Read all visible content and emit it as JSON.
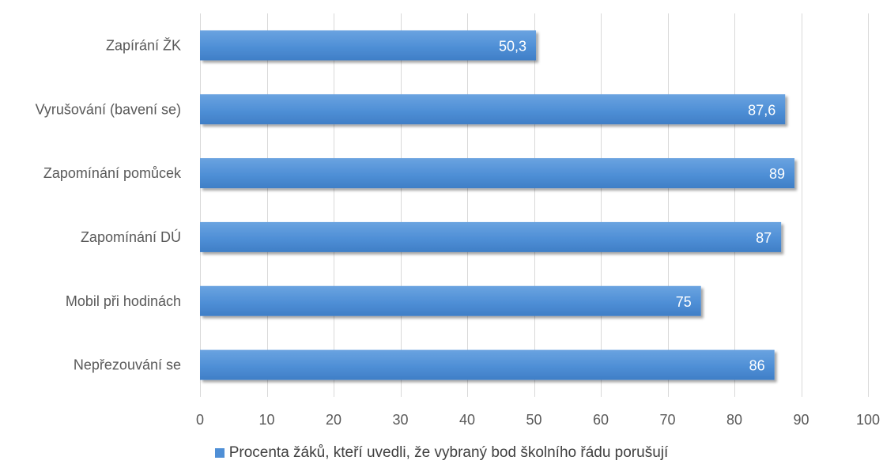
{
  "chart_data": {
    "type": "bar",
    "orientation": "horizontal",
    "categories": [
      "Zapírání ŽK",
      "Vyrušování (bavení se)",
      "Zapomínání pomůcek",
      "Zapomínání DÚ",
      "Mobil při hodinách",
      "Nepřezouvání se"
    ],
    "series": [
      {
        "name": "Procenta žáků, kteří uvedli, že vybraný bod školního řádu porušují",
        "values": [
          50.3,
          87.6,
          89,
          87,
          75,
          86
        ],
        "labels": [
          "50,3",
          "87,6",
          "89",
          "87",
          "75",
          "86"
        ]
      }
    ],
    "xlim": [
      0,
      100
    ],
    "xticks": [
      0,
      10,
      20,
      30,
      40,
      50,
      60,
      70,
      80,
      90,
      100
    ],
    "grid": true,
    "legend_position": "bottom",
    "bar_color": "#4f8fd6",
    "label_color": "#ffffff"
  }
}
